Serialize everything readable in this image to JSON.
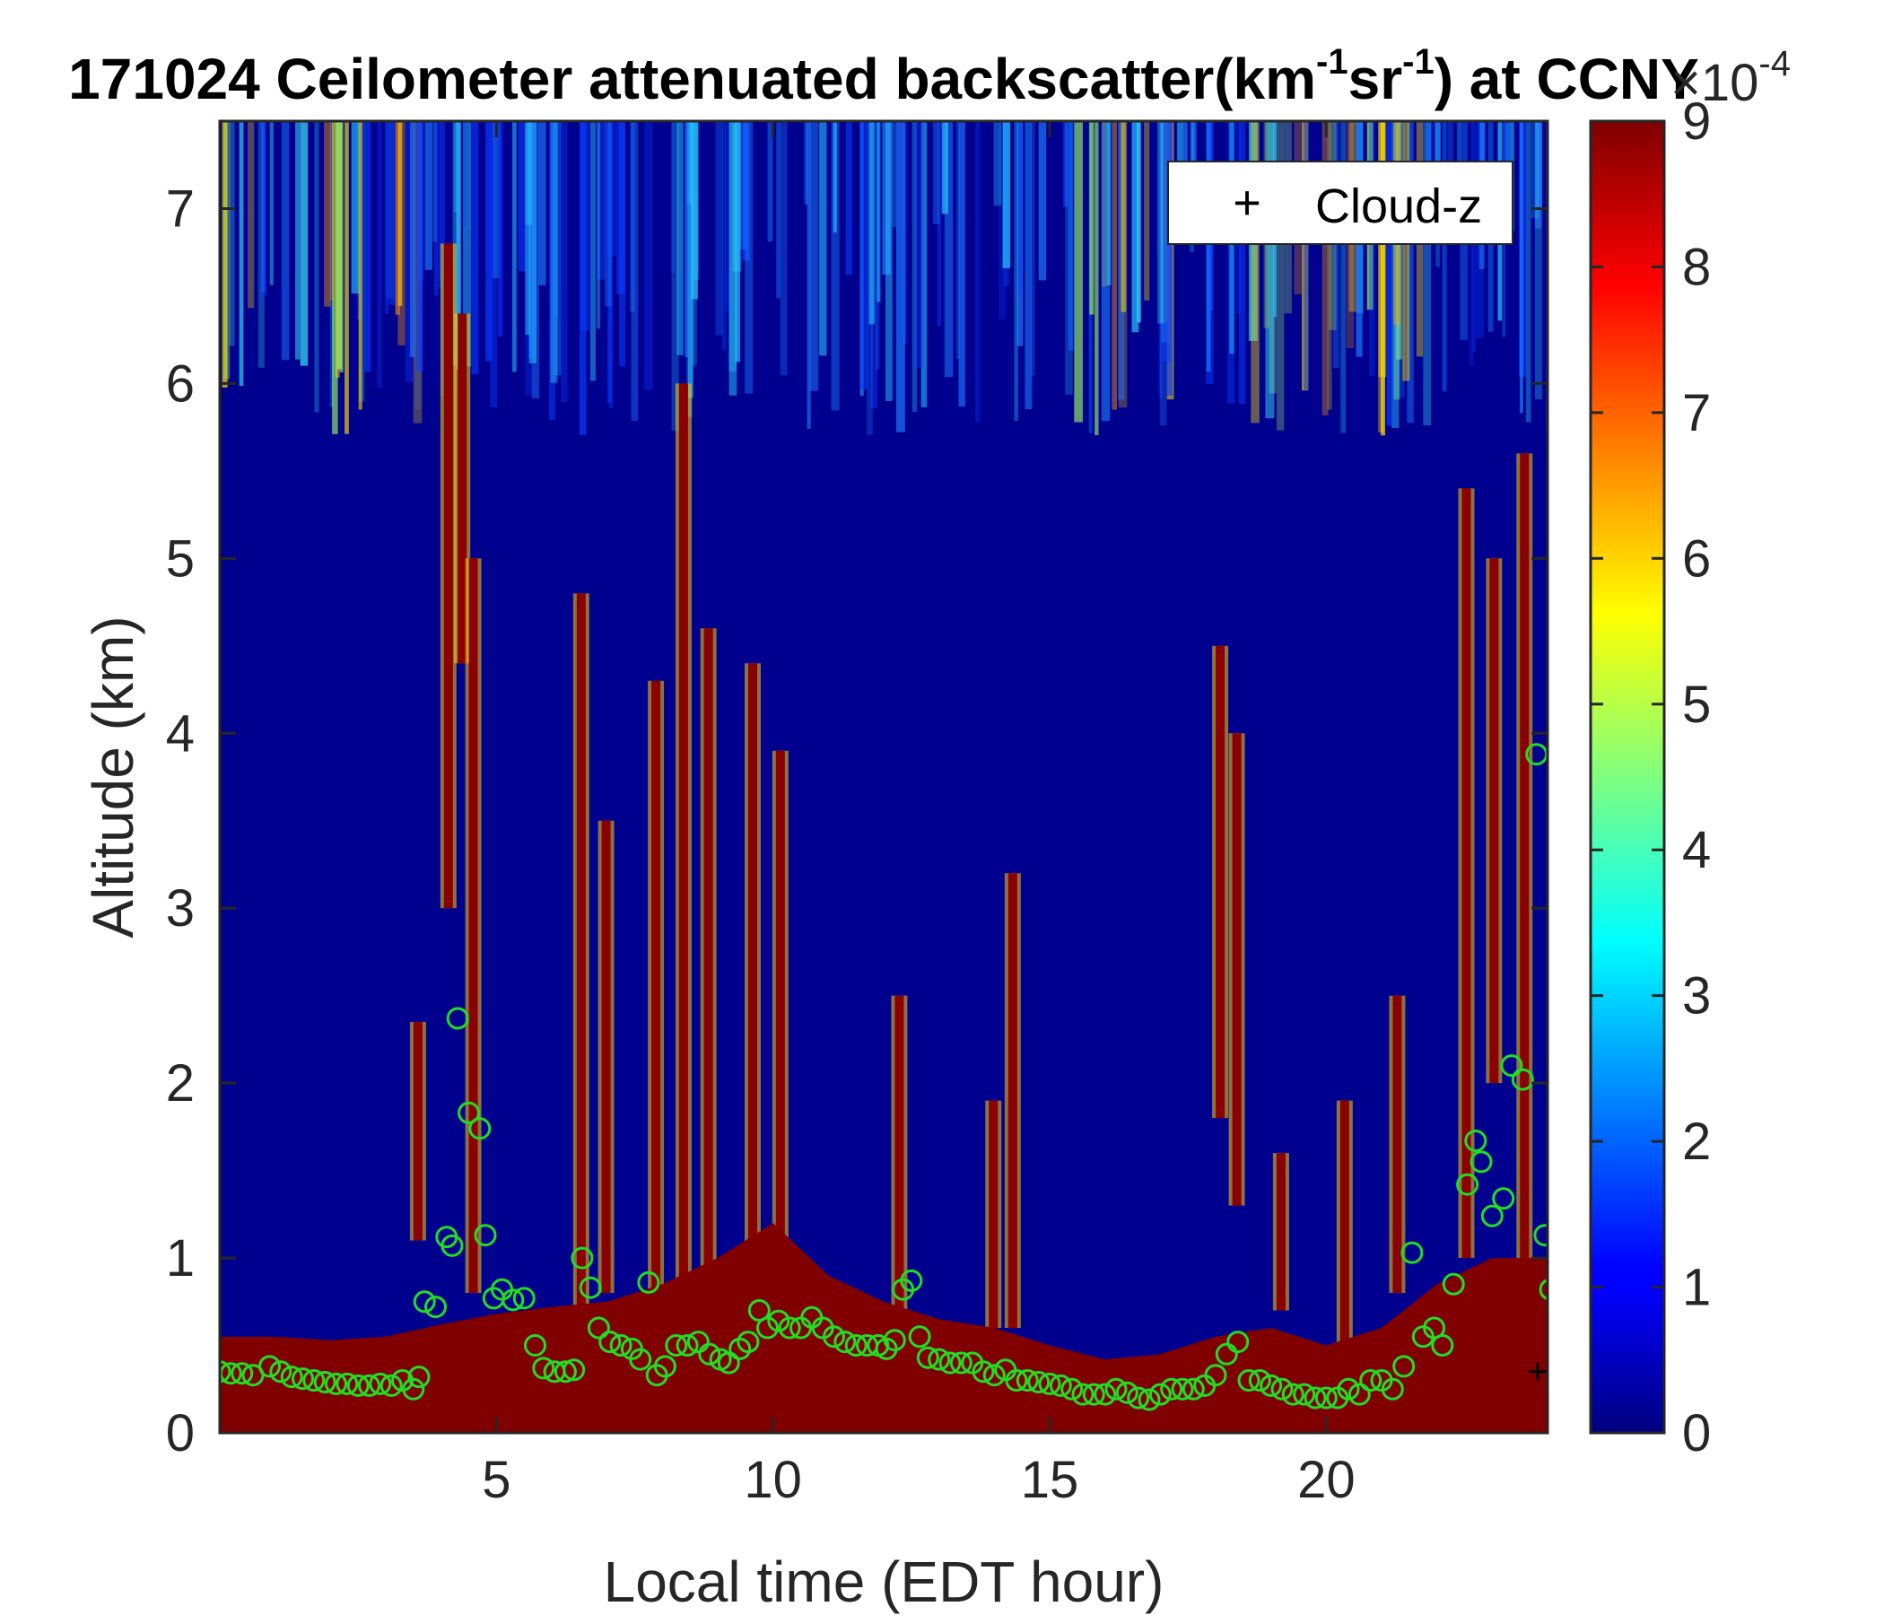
{
  "chart_data": {
    "type": "heatmap",
    "title": {
      "main": "171024 Ceilometer attenuated backscatter(km",
      "sup1": "-1",
      "mid": "sr",
      "sup2": "-1",
      "end": ") at CCNY"
    },
    "xlabel": "Local time (EDT hour)",
    "ylabel": "Altitude (km)",
    "xlim": [
      0,
      24
    ],
    "ylim": [
      0,
      7.5
    ],
    "xticks": [
      5,
      10,
      15,
      20
    ],
    "yticks": [
      0,
      1,
      2,
      3,
      4,
      5,
      6,
      7
    ],
    "colorbar": {
      "min": 0,
      "max": 9,
      "ticks": [
        0,
        1,
        2,
        3,
        4,
        5,
        6,
        7,
        8,
        9
      ],
      "exponent_label": "×10",
      "exponent_sup": "-4",
      "colormap": "jet"
    },
    "legend": {
      "location": "top-right",
      "entries": [
        {
          "marker": "+",
          "label": "Cloud-z"
        }
      ]
    },
    "boundary_layer_top_km": [
      [
        0.0,
        0.55
      ],
      [
        1.0,
        0.55
      ],
      [
        2.0,
        0.53
      ],
      [
        3.0,
        0.55
      ],
      [
        4.0,
        0.62
      ],
      [
        5.0,
        0.68
      ],
      [
        6.0,
        0.72
      ],
      [
        7.0,
        0.75
      ],
      [
        8.0,
        0.85
      ],
      [
        9.0,
        1.0
      ],
      [
        10.0,
        1.2
      ],
      [
        11.0,
        0.9
      ],
      [
        12.0,
        0.75
      ],
      [
        13.0,
        0.65
      ],
      [
        14.0,
        0.6
      ],
      [
        15.0,
        0.5
      ],
      [
        16.0,
        0.42
      ],
      [
        17.0,
        0.45
      ],
      [
        18.0,
        0.55
      ],
      [
        19.0,
        0.6
      ],
      [
        20.0,
        0.5
      ],
      [
        21.0,
        0.6
      ],
      [
        22.0,
        0.85
      ],
      [
        23.0,
        1.0
      ],
      [
        24.0,
        1.0
      ]
    ],
    "green_circle_points": [
      [
        0.0,
        0.35
      ],
      [
        0.2,
        0.34
      ],
      [
        0.4,
        0.34
      ],
      [
        0.6,
        0.33
      ],
      [
        0.9,
        0.38
      ],
      [
        1.1,
        0.35
      ],
      [
        1.3,
        0.32
      ],
      [
        1.5,
        0.31
      ],
      [
        1.7,
        0.3
      ],
      [
        1.9,
        0.29
      ],
      [
        2.1,
        0.28
      ],
      [
        2.3,
        0.28
      ],
      [
        2.5,
        0.27
      ],
      [
        2.7,
        0.27
      ],
      [
        2.9,
        0.28
      ],
      [
        3.1,
        0.27
      ],
      [
        3.3,
        0.3
      ],
      [
        3.5,
        0.25
      ],
      [
        3.6,
        0.32
      ],
      [
        3.7,
        0.75
      ],
      [
        3.9,
        0.72
      ],
      [
        4.1,
        1.12
      ],
      [
        4.2,
        1.07
      ],
      [
        4.3,
        2.37
      ],
      [
        4.5,
        1.83
      ],
      [
        4.7,
        1.74
      ],
      [
        4.8,
        1.13
      ],
      [
        4.95,
        0.77
      ],
      [
        5.1,
        0.82
      ],
      [
        5.3,
        0.76
      ],
      [
        5.5,
        0.77
      ],
      [
        5.7,
        0.5
      ],
      [
        5.85,
        0.37
      ],
      [
        6.05,
        0.35
      ],
      [
        6.25,
        0.35
      ],
      [
        6.4,
        0.36
      ],
      [
        6.55,
        1.0
      ],
      [
        6.7,
        0.83
      ],
      [
        6.85,
        0.6
      ],
      [
        7.05,
        0.52
      ],
      [
        7.25,
        0.5
      ],
      [
        7.45,
        0.48
      ],
      [
        7.6,
        0.42
      ],
      [
        7.75,
        0.86
      ],
      [
        7.9,
        0.33
      ],
      [
        8.05,
        0.38
      ],
      [
        8.25,
        0.5
      ],
      [
        8.45,
        0.5
      ],
      [
        8.65,
        0.52
      ],
      [
        8.85,
        0.45
      ],
      [
        9.05,
        0.42
      ],
      [
        9.2,
        0.4
      ],
      [
        9.4,
        0.48
      ],
      [
        9.55,
        0.52
      ],
      [
        9.75,
        0.7
      ],
      [
        9.9,
        0.6
      ],
      [
        10.1,
        0.64
      ],
      [
        10.3,
        0.6
      ],
      [
        10.5,
        0.6
      ],
      [
        10.7,
        0.66
      ],
      [
        10.9,
        0.6
      ],
      [
        11.1,
        0.55
      ],
      [
        11.3,
        0.52
      ],
      [
        11.5,
        0.5
      ],
      [
        11.7,
        0.5
      ],
      [
        11.9,
        0.5
      ],
      [
        12.05,
        0.48
      ],
      [
        12.2,
        0.53
      ],
      [
        12.35,
        0.82
      ],
      [
        12.5,
        0.87
      ],
      [
        12.65,
        0.55
      ],
      [
        12.8,
        0.43
      ],
      [
        13.0,
        0.42
      ],
      [
        13.2,
        0.4
      ],
      [
        13.4,
        0.4
      ],
      [
        13.6,
        0.4
      ],
      [
        13.8,
        0.35
      ],
      [
        14.0,
        0.33
      ],
      [
        14.2,
        0.36
      ],
      [
        14.4,
        0.3
      ],
      [
        14.6,
        0.3
      ],
      [
        14.8,
        0.29
      ],
      [
        15.0,
        0.28
      ],
      [
        15.2,
        0.27
      ],
      [
        15.4,
        0.25
      ],
      [
        15.6,
        0.22
      ],
      [
        15.8,
        0.22
      ],
      [
        16.0,
        0.22
      ],
      [
        16.2,
        0.25
      ],
      [
        16.4,
        0.23
      ],
      [
        16.6,
        0.2
      ],
      [
        16.8,
        0.19
      ],
      [
        17.0,
        0.22
      ],
      [
        17.2,
        0.25
      ],
      [
        17.4,
        0.25
      ],
      [
        17.6,
        0.25
      ],
      [
        17.8,
        0.27
      ],
      [
        18.0,
        0.33
      ],
      [
        18.2,
        0.45
      ],
      [
        18.4,
        0.52
      ],
      [
        18.6,
        0.3
      ],
      [
        18.8,
        0.3
      ],
      [
        19.0,
        0.27
      ],
      [
        19.2,
        0.25
      ],
      [
        19.4,
        0.22
      ],
      [
        19.6,
        0.22
      ],
      [
        19.8,
        0.2
      ],
      [
        20.0,
        0.2
      ],
      [
        20.2,
        0.2
      ],
      [
        20.4,
        0.25
      ],
      [
        20.6,
        0.22
      ],
      [
        20.8,
        0.3
      ],
      [
        21.0,
        0.3
      ],
      [
        21.2,
        0.25
      ],
      [
        21.4,
        0.38
      ],
      [
        21.55,
        1.03
      ],
      [
        21.75,
        0.55
      ],
      [
        21.95,
        0.6
      ],
      [
        22.1,
        0.5
      ],
      [
        22.3,
        0.85
      ],
      [
        22.55,
        1.42
      ],
      [
        22.7,
        1.67
      ],
      [
        22.8,
        1.55
      ],
      [
        23.0,
        1.24
      ],
      [
        23.2,
        1.34
      ],
      [
        23.35,
        2.1
      ],
      [
        23.55,
        2.02
      ],
      [
        23.8,
        3.88
      ],
      [
        23.95,
        1.13
      ],
      [
        24.05,
        0.82
      ]
    ],
    "cloud_z_points": [
      [
        23.82,
        0.35
      ]
    ]
  }
}
